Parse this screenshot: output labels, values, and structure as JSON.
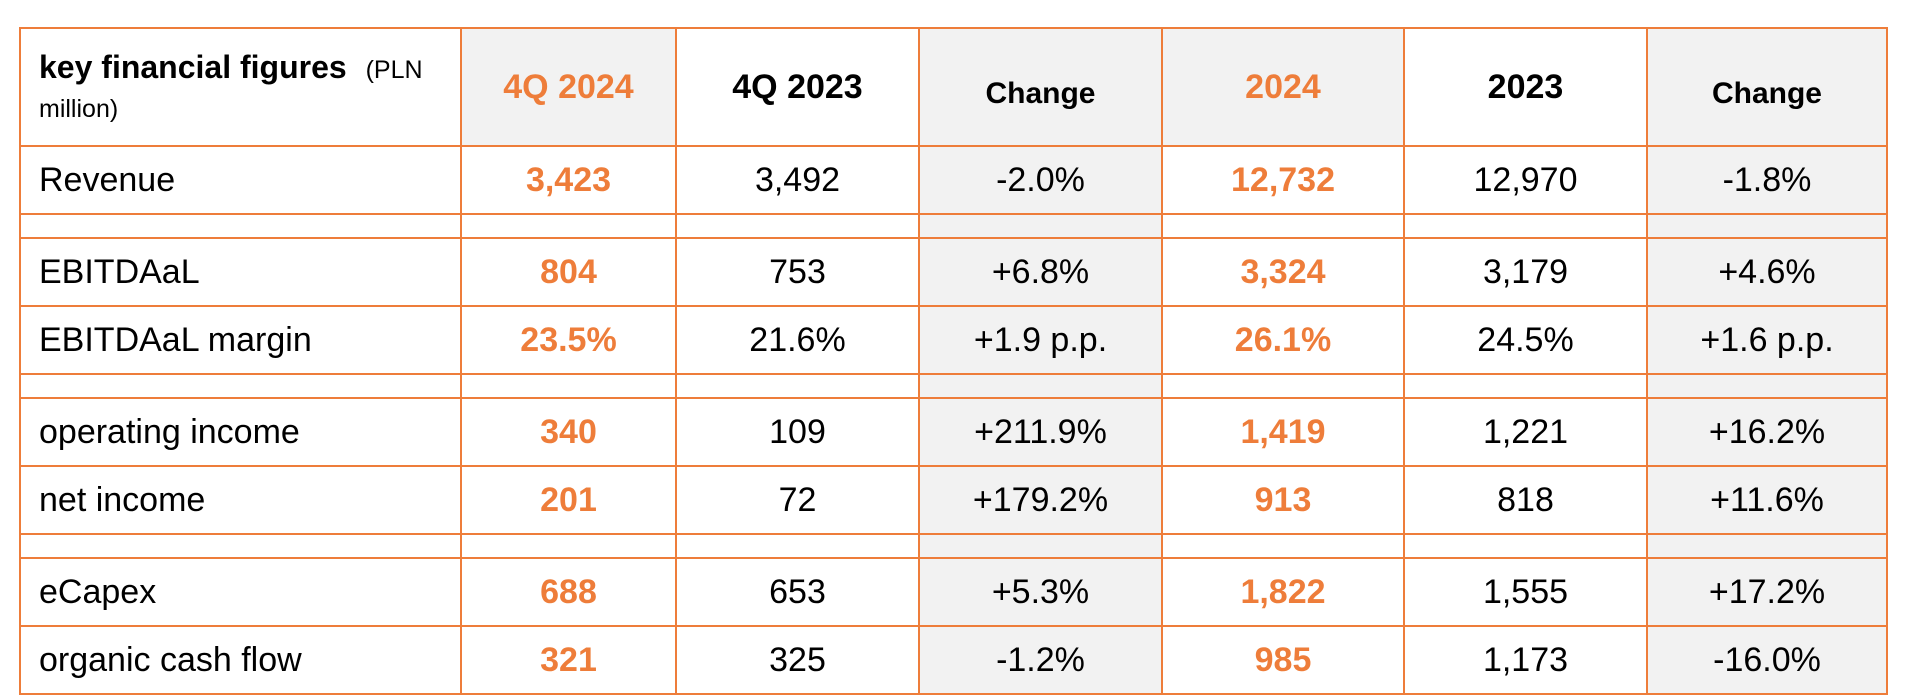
{
  "header": {
    "title": "key financial figures",
    "unit": "(PLN million)",
    "columns": [
      "4Q 2024",
      "4Q 2023",
      "Change",
      "2024",
      "2023",
      "Change"
    ]
  },
  "rows": [
    {
      "label": "Revenue",
      "values": [
        "3,423",
        "3,492",
        "-2.0%",
        "12,732",
        "12,970",
        "-1.8%"
      ]
    },
    {
      "label": "EBITDAaL",
      "values": [
        "804",
        "753",
        "+6.8%",
        "3,324",
        "3,179",
        "+4.6%"
      ]
    },
    {
      "label": "EBITDAaL margin",
      "values": [
        "23.5%",
        "21.6%",
        "+1.9 p.p.",
        "26.1%",
        "24.5%",
        "+1.6 p.p."
      ]
    },
    {
      "label": "operating income",
      "values": [
        "340",
        "109",
        "+211.9%",
        "1,419",
        "1,221",
        "+16.2%"
      ]
    },
    {
      "label": "net income",
      "values": [
        "201",
        "72",
        "+179.2%",
        "913",
        "818",
        "+11.6%"
      ]
    },
    {
      "label": "eCapex",
      "values": [
        "688",
        "653",
        "+5.3%",
        "1,822",
        "1,555",
        "+17.2%"
      ]
    },
    {
      "label": "organic cash flow",
      "values": [
        "321",
        "325",
        "-1.2%",
        "985",
        "1,173",
        "-16.0%"
      ]
    }
  ],
  "colors": {
    "accent": "#EE7D3A",
    "shade": "#f2f2f2"
  }
}
